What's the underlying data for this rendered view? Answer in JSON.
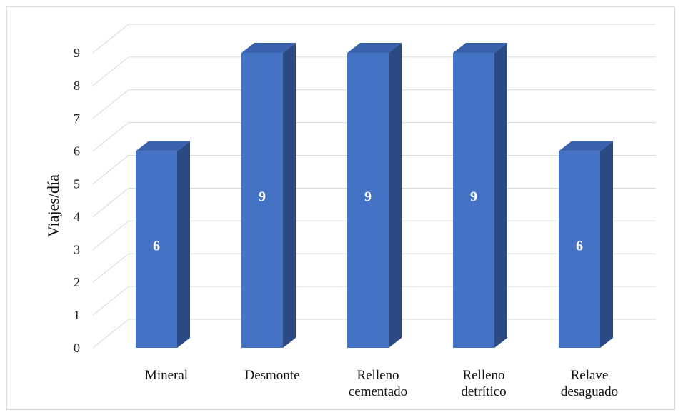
{
  "chart_data": {
    "type": "bar",
    "style": "3d-column",
    "categories": [
      [
        "Mineral"
      ],
      [
        "Desmonte"
      ],
      [
        "Relleno",
        "cementado"
      ],
      [
        "Relleno",
        "detrítico"
      ],
      [
        "Relave",
        "desaguado"
      ]
    ],
    "values": [
      6,
      9,
      9,
      9,
      6
    ],
    "data_labels": [
      "6",
      "9",
      "9",
      "9",
      "6"
    ],
    "ylabel": "Viajes/día",
    "ylim": [
      0,
      9
    ],
    "yticks": [
      "0",
      "1",
      "2",
      "3",
      "4",
      "5",
      "6",
      "7",
      "8",
      "9"
    ],
    "grid": true,
    "legend": "none",
    "colors": {
      "bar_front": "#4472C4",
      "bar_side": "#2B4A84",
      "bar_top": "#3A62AC",
      "grid": "#d9d9d9"
    }
  }
}
